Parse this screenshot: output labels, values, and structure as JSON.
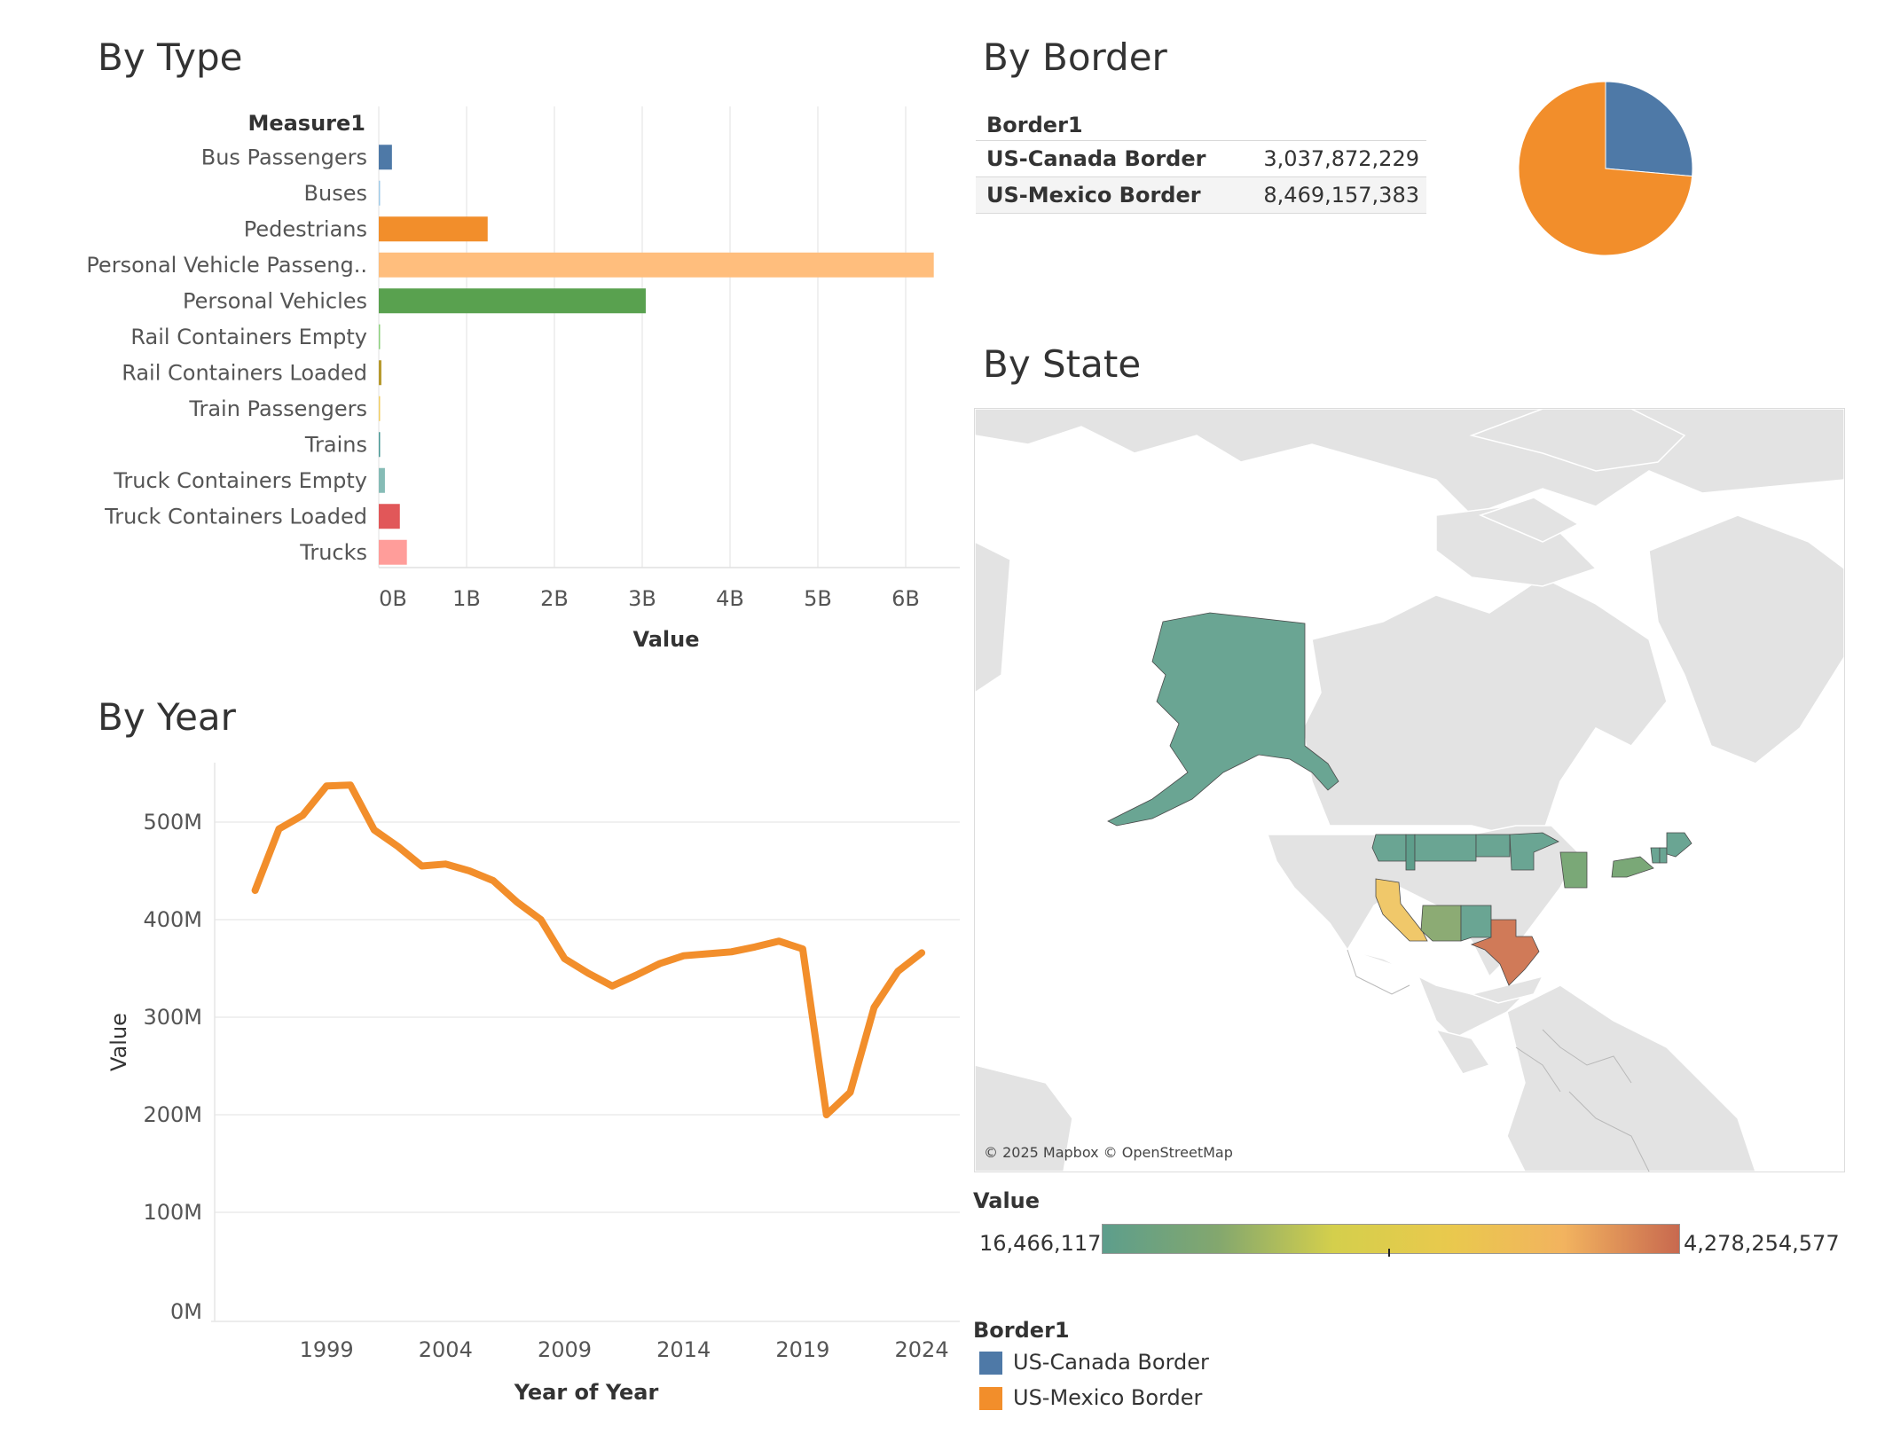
{
  "by_type": {
    "title": "By Type",
    "column_header": "Measure1",
    "x_title": "Value"
  },
  "by_year": {
    "title": "By Year",
    "x_title": "Year of Year",
    "y_title": "Value"
  },
  "by_border": {
    "title": "By Border",
    "table_header": "Border1",
    "rows": [
      {
        "name": "US-Canada Border",
        "value": "3,037,872,229"
      },
      {
        "name": "US-Mexico Border",
        "value": "8,469,157,383"
      }
    ]
  },
  "by_state": {
    "title": "By State",
    "credit": "© 2025 Mapbox © OpenStreetMap",
    "value_legend_title": "Value",
    "value_min": "16,466,117",
    "value_max": "4,278,254,577",
    "gradient_colors": [
      "#5d9e8c",
      "#83a76e",
      "#d4cf4c",
      "#e9c94d",
      "#f2b35f",
      "#c8694f"
    ],
    "border_legend_title": "Border1",
    "border_legend": [
      {
        "label": "US-Canada Border",
        "color": "#4e79a7"
      },
      {
        "label": "US-Mexico Border",
        "color": "#f28e2b"
      }
    ]
  },
  "chart_data": [
    {
      "type": "bar",
      "title": "By Type",
      "orientation": "horizontal",
      "categories": [
        "Bus Passengers",
        "Buses",
        "Pedestrians",
        "Personal Vehicle Passeng..",
        "Personal Vehicles",
        "Rail Containers Empty",
        "Rail Containers Loaded",
        "Train Passengers",
        "Trains",
        "Truck Containers Empty",
        "Truck Containers Loaded",
        "Trucks"
      ],
      "values": [
        0.15,
        0.005,
        1.24,
        6.32,
        3.04,
        0.006,
        0.03,
        0.006,
        0.012,
        0.07,
        0.24,
        0.32
      ],
      "value_unit": "B",
      "colors": [
        "#4e79a7",
        "#a0cbe8",
        "#f28e2b",
        "#ffbe7d",
        "#59a14f",
        "#8cd17d",
        "#b6992d",
        "#f1ce63",
        "#499894",
        "#86bcb6",
        "#e15759",
        "#ff9d9a"
      ],
      "xlabel": "Value",
      "ylabel": "Measure1",
      "xlim": [
        0,
        6.5
      ],
      "xticks": [
        0,
        1,
        2,
        3,
        4,
        5,
        6
      ],
      "xtick_labels": [
        "0B",
        "1B",
        "2B",
        "3B",
        "4B",
        "5B",
        "6B"
      ],
      "grid": true
    },
    {
      "type": "line",
      "title": "By Year",
      "x": [
        1996,
        1997,
        1998,
        1999,
        2000,
        2001,
        2002,
        2003,
        2004,
        2005,
        2006,
        2007,
        2008,
        2009,
        2010,
        2011,
        2012,
        2013,
        2014,
        2015,
        2016,
        2017,
        2018,
        2019,
        2020,
        2021,
        2022,
        2023,
        2024
      ],
      "series": [
        {
          "values": [
            430,
            493,
            507,
            537,
            538,
            492,
            475,
            455,
            457,
            450,
            440,
            418,
            400,
            360,
            345,
            332,
            343,
            355,
            363,
            365,
            367,
            372,
            378,
            370,
            200,
            223,
            310,
            347,
            366
          ],
          "color": "#f28e2b"
        }
      ],
      "value_unit": "M",
      "xlabel": "Year of Year",
      "ylabel": "Value",
      "ylim": [
        0,
        560
      ],
      "yticks": [
        0,
        100,
        200,
        300,
        400,
        500
      ],
      "ytick_labels": [
        "0M",
        "100M",
        "200M",
        "300M",
        "400M",
        "500M"
      ],
      "xticks": [
        1999,
        2004,
        2009,
        2014,
        2019,
        2024
      ],
      "grid": true
    },
    {
      "type": "pie",
      "title": "By Border",
      "categories": [
        "US-Canada Border",
        "US-Mexico Border"
      ],
      "values": [
        3037872229,
        8469157383
      ],
      "colors": [
        "#4e79a7",
        "#f28e2b"
      ]
    }
  ]
}
